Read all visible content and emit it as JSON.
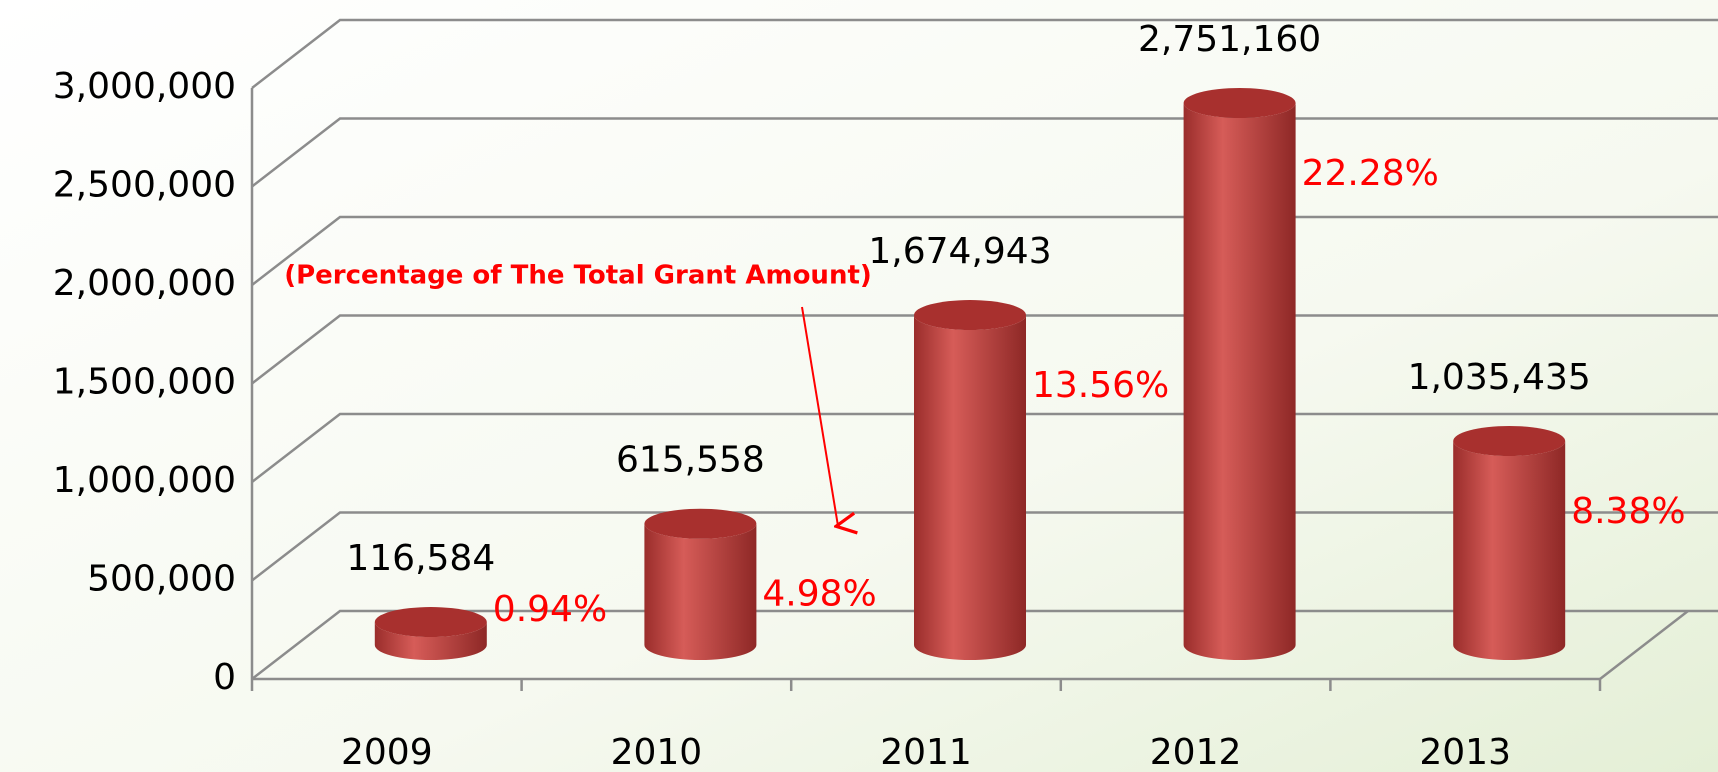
{
  "chart_data": {
    "type": "bar3d",
    "annotation": "(Percentage of The Total Grant Amount)",
    "categories": [
      "2009",
      "2010",
      "2011",
      "2012",
      "2013"
    ],
    "values": [
      116584,
      615558,
      1674943,
      2751160,
      1035435
    ],
    "value_labels": [
      "116,584",
      "615,558",
      "1,674,943",
      "2,751,160",
      "1,035,435"
    ],
    "percentages": [
      0.94,
      4.98,
      13.56,
      22.28,
      8.38
    ],
    "percentage_labels": [
      "0.94%",
      "4.98%",
      "13.56%",
      "22.28%",
      "8.38%"
    ],
    "color": "#c0504d",
    "ylim": [
      0,
      3000000
    ],
    "yticks": [
      0,
      {
        "value": 500000,
        "label": "500,000"
      },
      {
        "value": 1000000,
        "label": "1,000,000"
      },
      {
        "value": 1500000,
        "label": "1,500,000"
      },
      {
        "value": 2000000,
        "label": "2,000,000"
      },
      {
        "value": 2500000,
        "label": "2,500,000"
      },
      {
        "value": 3000000,
        "label": "3,000,000"
      }
    ],
    "grid": true
  }
}
